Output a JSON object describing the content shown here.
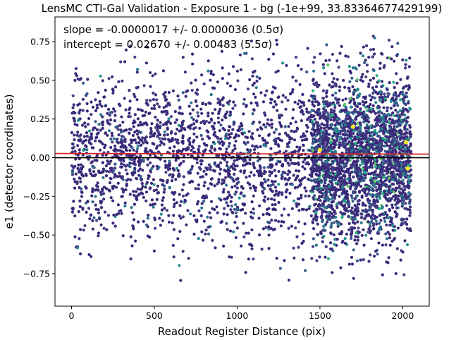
{
  "chart_data": {
    "type": "scatter",
    "title": "LensMC CTI-Gal Validation - Exposure 1 - bg (-1e+99, 33.83364677429199)",
    "xlabel": "Readout Register Distance (pix)",
    "ylabel": "e1 (detector coordinates)",
    "xlim": [
      -100,
      2160
    ],
    "ylim": [
      -0.96,
      0.91
    ],
    "x_ticks": [
      "0",
      "500",
      "1000",
      "1500",
      "2000"
    ],
    "x_tick_values": [
      0,
      500,
      1000,
      1500,
      2000
    ],
    "y_ticks": [
      "−0.75",
      "−0.50",
      "−0.25",
      "0.00",
      "0.25",
      "0.50",
      "0.75"
    ],
    "y_tick_values": [
      -0.75,
      -0.5,
      -0.25,
      0.0,
      0.25,
      0.5,
      0.75
    ],
    "grid": false,
    "annotations": [
      "slope = -0.0000017 +/- 0.0000036 (0.5σ)",
      "intercept = 0.02670 +/- 0.00483 (5.5σ)"
    ],
    "fit_line": {
      "slope": -1.7e-06,
      "intercept": 0.0267,
      "color": "#d62728"
    },
    "zero_line": {
      "y": 0.0,
      "color": "#000000"
    },
    "point_cloud": {
      "x_range": [
        0,
        2050
      ],
      "y_center": 0.0,
      "y_spread": 0.8,
      "denser_region_x": [
        1450,
        2050
      ],
      "colormap": "viridis"
    },
    "highlight_points": [
      {
        "x": 1500,
        "y": 0.05
      },
      {
        "x": 1700,
        "y": 0.2
      },
      {
        "x": 2020,
        "y": 0.1
      },
      {
        "x": 2030,
        "y": -0.07
      }
    ]
  }
}
